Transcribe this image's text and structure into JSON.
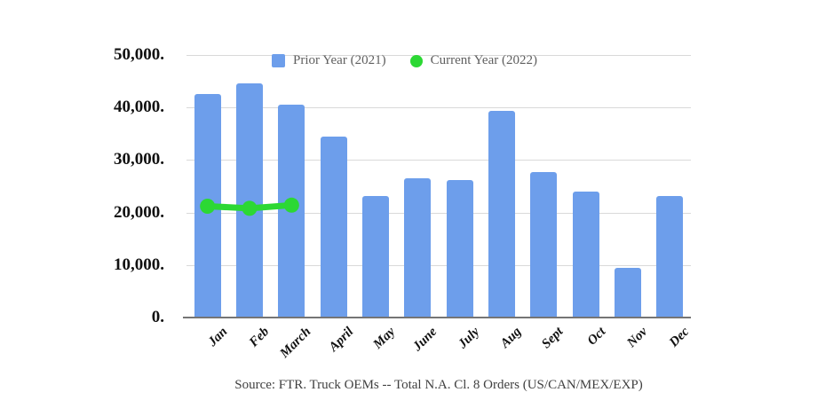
{
  "chart_data": {
    "type": "bar",
    "title": "",
    "xlabel": "",
    "ylabel": "",
    "categories": [
      "Jan",
      "Feb",
      "March",
      "April",
      "May",
      "June",
      "July",
      "Aug",
      "Sept",
      "Oct",
      "Nov",
      "Dec"
    ],
    "series": [
      {
        "name": "Prior Year (2021)",
        "type": "bar",
        "color": "#6d9eeb",
        "values": [
          42600,
          44600,
          40500,
          34500,
          23100,
          26500,
          26200,
          39400,
          27700,
          24000,
          9500,
          23100
        ]
      },
      {
        "name": "Current Year (2022)",
        "type": "line",
        "color": "#2cd834",
        "values": [
          21200,
          20800,
          21400,
          null,
          null,
          null,
          null,
          null,
          null,
          null,
          null,
          null
        ]
      }
    ],
    "ylim": [
      0,
      50000
    ],
    "ytick_interval": 10000,
    "ytick_labels": [
      "0.",
      "10,000.",
      "20,000.",
      "30,000.",
      "40,000.",
      "50,000."
    ],
    "grid": true,
    "legend_position": "top"
  },
  "legend": {
    "items": [
      {
        "label": "Prior Year (2021)",
        "marker": "square",
        "color": "#6d9eeb"
      },
      {
        "label": "Current Year (2022)",
        "marker": "circle",
        "color": "#2cd834"
      }
    ]
  },
  "footer": {
    "source_text": "Source: FTR. Truck OEMs -- Total N.A. Cl. 8 Orders (US/CAN/MEX/EXP)"
  },
  "colors": {
    "bar": "#6d9eeb",
    "line": "#2cd834",
    "gridline": "#d9d9d9",
    "axis": "#757575",
    "tick_text": "#111111",
    "legend_text": "#5f5f5f",
    "source_text": "#404040",
    "background": "#ffffff"
  }
}
